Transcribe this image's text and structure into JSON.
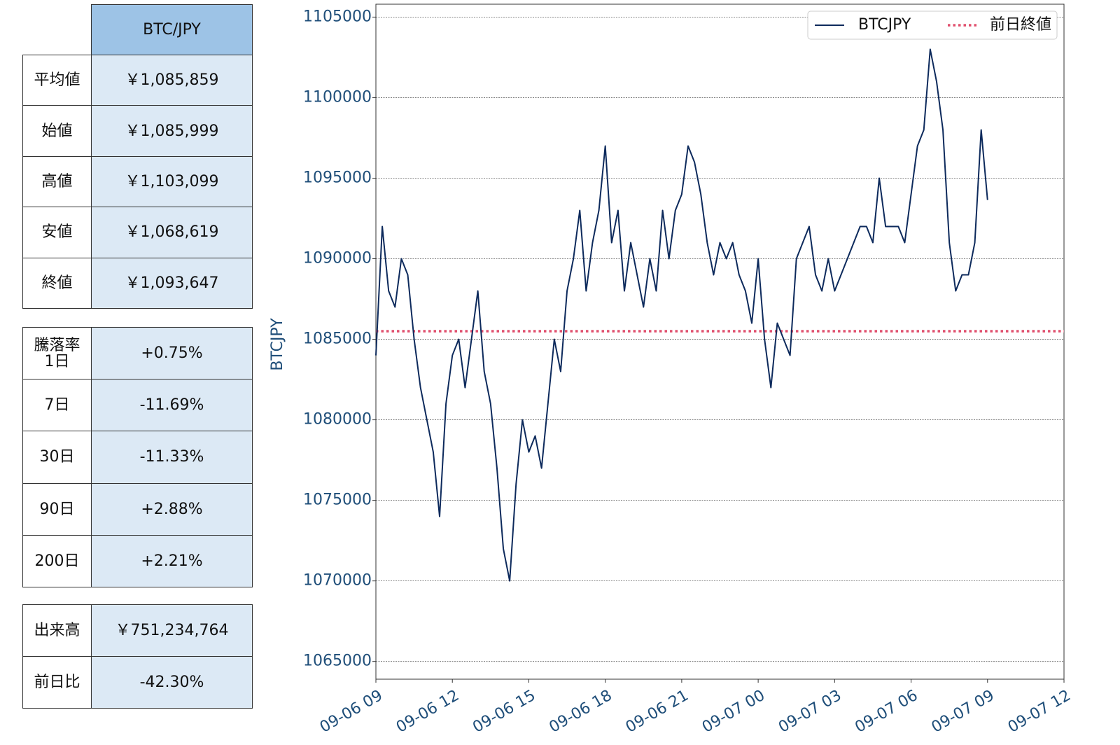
{
  "summary_table": {
    "header": "BTC/JPY",
    "rows": [
      [
        "平均値",
        "￥1,085,859"
      ],
      [
        "始値",
        "￥1,085,999"
      ],
      [
        "高値",
        "￥1,103,099"
      ],
      [
        "安値",
        "￥1,068,619"
      ],
      [
        "終値",
        "￥1,093,647"
      ]
    ]
  },
  "change_table": {
    "title": "騰落率",
    "rows": [
      [
        "1日",
        "+0.75%"
      ],
      [
        "7日",
        "-11.69%"
      ],
      [
        "30日",
        "-11.33%"
      ],
      [
        "90日",
        "+2.88%"
      ],
      [
        "200日",
        "+2.21%"
      ]
    ]
  },
  "volume_table": {
    "rows": [
      [
        "出来高",
        "￥751,234,764"
      ],
      [
        "前日比",
        "-42.30%"
      ]
    ]
  },
  "chart_data": {
    "type": "line",
    "y_label": "BTCJPY",
    "grid": true,
    "legend": "upper right",
    "x": [
      "09-06 09:00",
      "09-06 09:15",
      "09-06 09:30",
      "09-06 09:45",
      "09-06 10:00",
      "09-06 10:15",
      "09-06 10:30",
      "09-06 10:45",
      "09-06 11:00",
      "09-06 11:15",
      "09-06 11:30",
      "09-06 11:45",
      "09-06 12:00",
      "09-06 12:15",
      "09-06 12:30",
      "09-06 12:45",
      "09-06 13:00",
      "09-06 13:15",
      "09-06 13:30",
      "09-06 13:45",
      "09-06 14:00",
      "09-06 14:15",
      "09-06 14:30",
      "09-06 14:45",
      "09-06 15:00",
      "09-06 15:15",
      "09-06 15:30",
      "09-06 15:45",
      "09-06 16:00",
      "09-06 16:15",
      "09-06 16:30",
      "09-06 16:45",
      "09-06 17:00",
      "09-06 17:15",
      "09-06 17:30",
      "09-06 17:45",
      "09-06 18:00",
      "09-06 18:15",
      "09-06 18:30",
      "09-06 18:45",
      "09-06 19:00",
      "09-06 19:15",
      "09-06 19:30",
      "09-06 19:45",
      "09-06 20:00",
      "09-06 20:15",
      "09-06 20:30",
      "09-06 20:45",
      "09-06 21:00",
      "09-06 21:15",
      "09-06 21:30",
      "09-06 21:45",
      "09-06 22:00",
      "09-06 22:15",
      "09-06 22:30",
      "09-06 22:45",
      "09-06 23:00",
      "09-06 23:15",
      "09-06 23:30",
      "09-06 23:45",
      "09-07 00:00",
      "09-07 00:15",
      "09-07 00:30",
      "09-07 00:45",
      "09-07 01:00",
      "09-07 01:15",
      "09-07 01:30",
      "09-07 01:45",
      "09-07 02:00",
      "09-07 02:15",
      "09-07 02:30",
      "09-07 02:45",
      "09-07 03:00",
      "09-07 03:15",
      "09-07 03:30",
      "09-07 03:45",
      "09-07 04:00",
      "09-07 04:15",
      "09-07 04:30",
      "09-07 04:45",
      "09-07 05:00",
      "09-07 05:15",
      "09-07 05:30",
      "09-07 05:45",
      "09-07 06:00",
      "09-07 06:15",
      "09-07 06:30",
      "09-07 06:45",
      "09-07 07:00",
      "09-07 07:15",
      "09-07 07:30",
      "09-07 07:45",
      "09-07 08:00",
      "09-07 08:15",
      "09-07 08:30",
      "09-07 08:45",
      "09-07 09:00"
    ],
    "series": [
      {
        "name": "BTCJPY",
        "color": "#0d2a5c",
        "values": [
          1084000,
          1092000,
          1088000,
          1087000,
          1090000,
          1089000,
          1085000,
          1082000,
          1080000,
          1078000,
          1074000,
          1081000,
          1084000,
          1085000,
          1082000,
          1085000,
          1088000,
          1083000,
          1081000,
          1077000,
          1072000,
          1070000,
          1076000,
          1080000,
          1078000,
          1079000,
          1077000,
          1081000,
          1085000,
          1083000,
          1088000,
          1090000,
          1093000,
          1088000,
          1091000,
          1093000,
          1097000,
          1091000,
          1093000,
          1088000,
          1091000,
          1089000,
          1087000,
          1090000,
          1088000,
          1093000,
          1090000,
          1093000,
          1094000,
          1097000,
          1096000,
          1094000,
          1091000,
          1089000,
          1091000,
          1090000,
          1091000,
          1089000,
          1088000,
          1086000,
          1090000,
          1085000,
          1082000,
          1086000,
          1085000,
          1084000,
          1090000,
          1091000,
          1092000,
          1089000,
          1088000,
          1090000,
          1088000,
          1089000,
          1090000,
          1091000,
          1092000,
          1092000,
          1091000,
          1095000,
          1092000,
          1092000,
          1092000,
          1091000,
          1094000,
          1097000,
          1098000,
          1103000,
          1101000,
          1098000,
          1091000,
          1088000,
          1089000,
          1089000,
          1091000,
          1098000,
          1093647
        ]
      }
    ],
    "reference_lines": [
      {
        "name": "前日終値",
        "value": 1085500,
        "color": "#e0506e",
        "style": "dotted"
      }
    ],
    "xlim": [
      "09-06 09",
      "09-07 12"
    ],
    "xticks": [
      "09-06 09",
      "09-06 12",
      "09-06 15",
      "09-06 18",
      "09-06 21",
      "09-07 00",
      "09-07 03",
      "09-07 06",
      "09-07 09",
      "09-07 12"
    ],
    "ylim": [
      1063900,
      1105800
    ],
    "yticks": [
      1065000,
      1070000,
      1075000,
      1080000,
      1085000,
      1090000,
      1095000,
      1100000,
      1105000
    ]
  }
}
